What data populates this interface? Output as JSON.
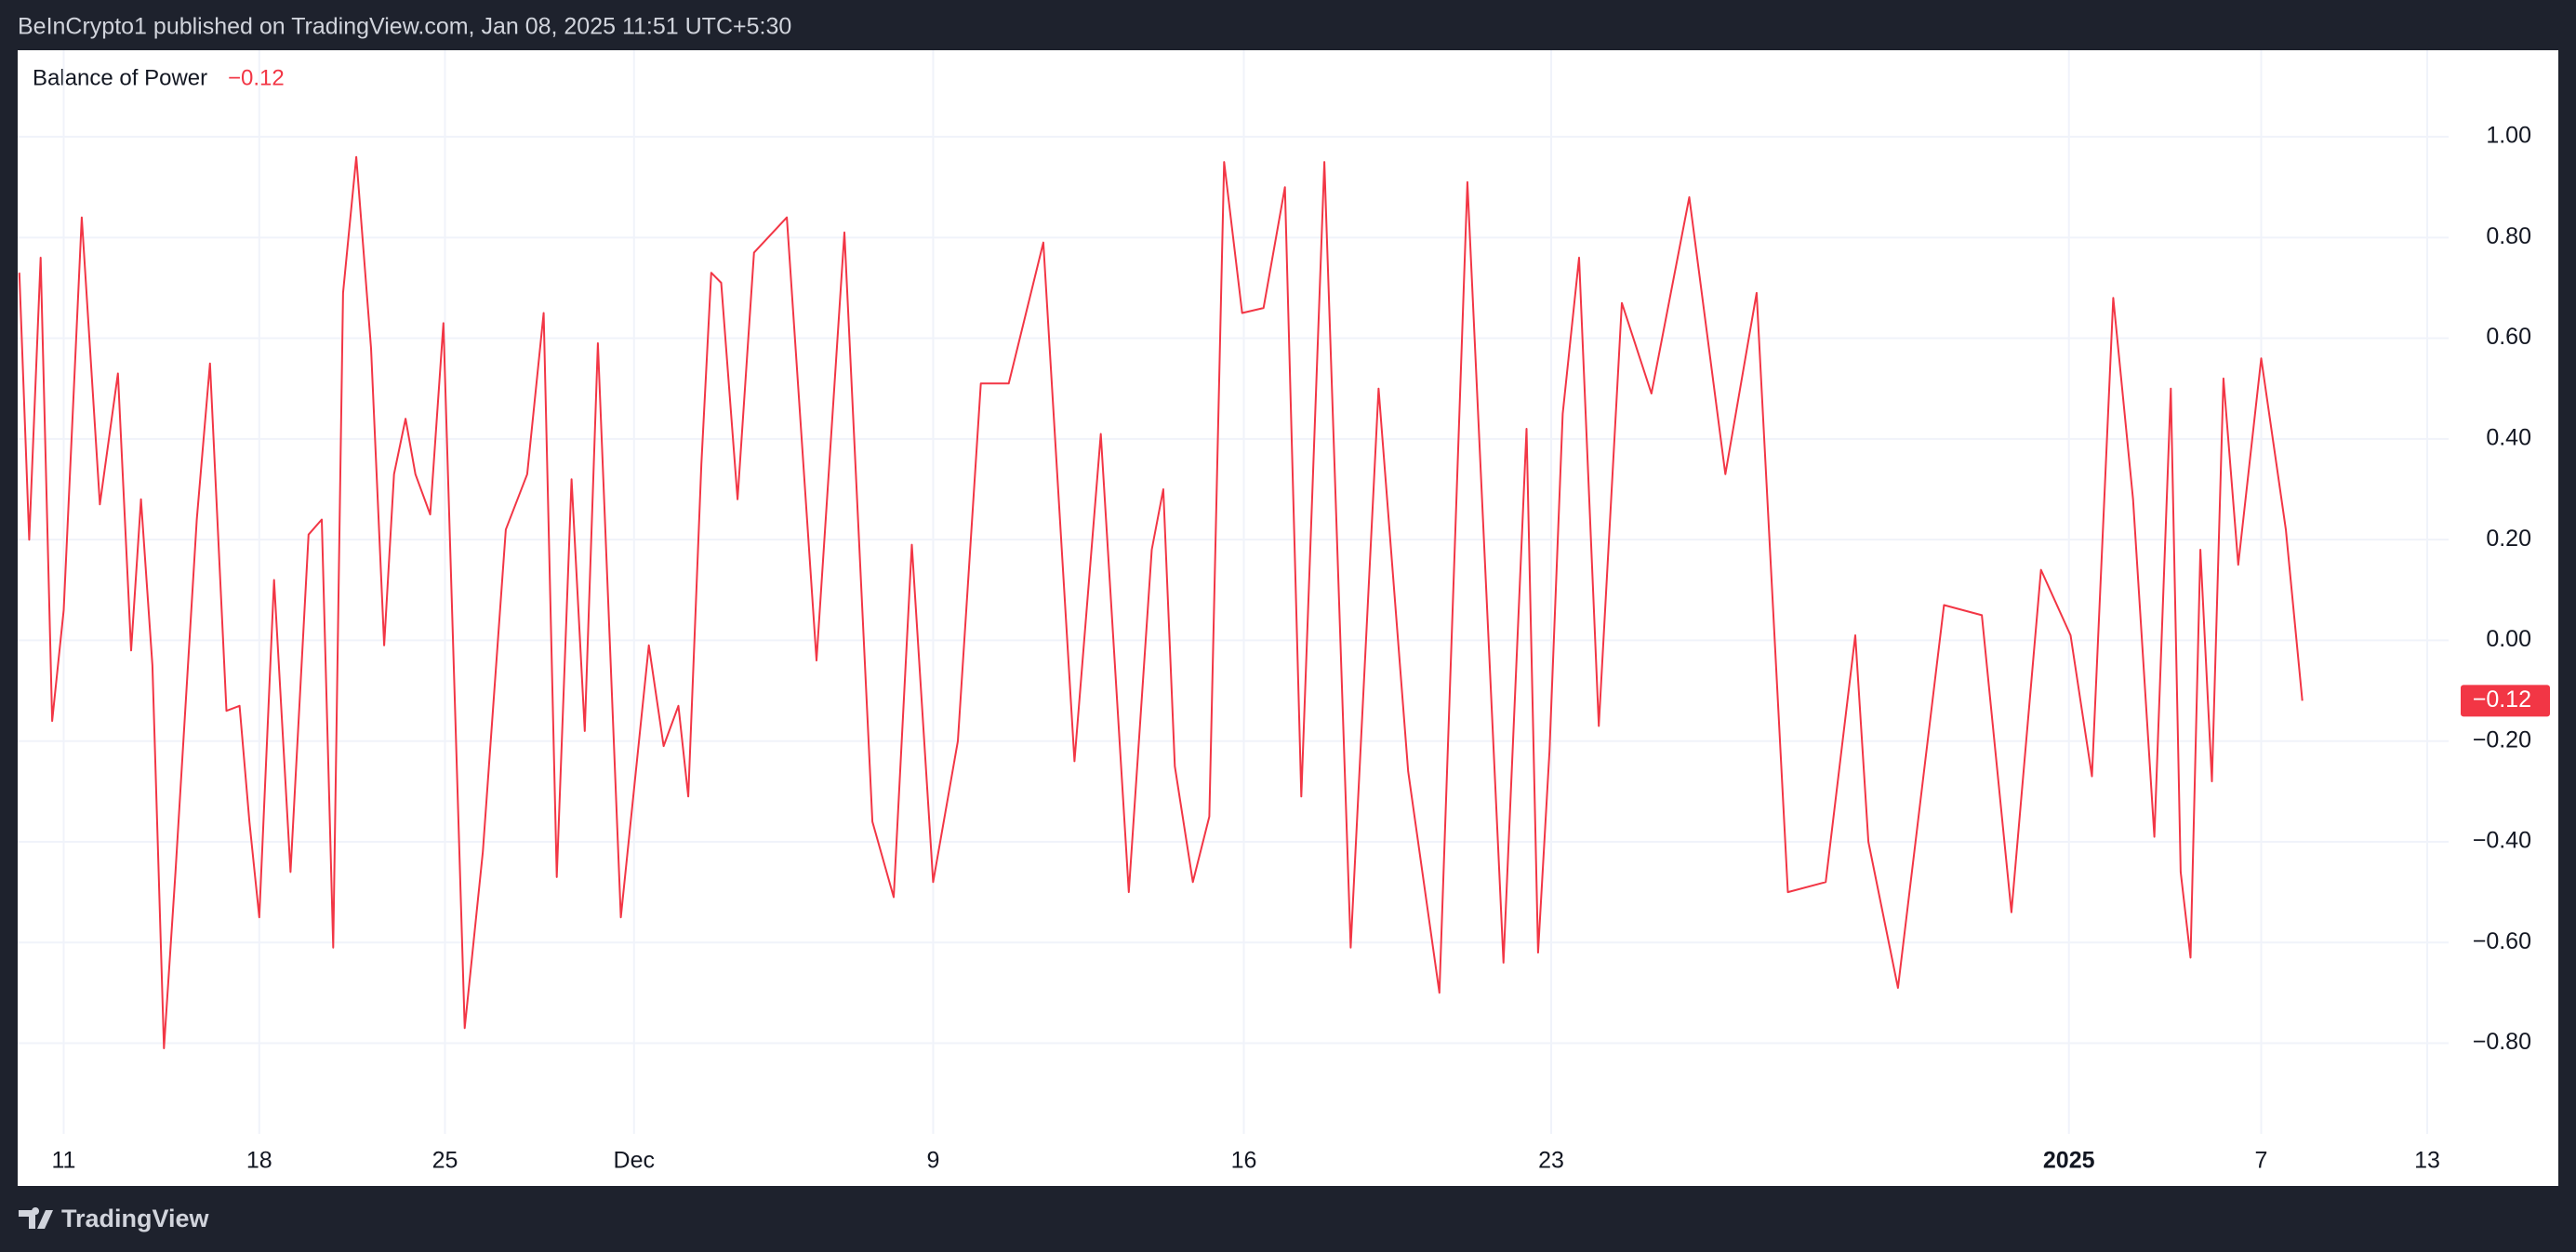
{
  "header": {
    "text": "BeInCrypto1 published on TradingView.com, Jan 08, 2025 11:51 UTC+5:30"
  },
  "footer": {
    "brand": "TradingView"
  },
  "chart_data": {
    "type": "line",
    "grid": true,
    "x": [
      1.2,
      1.8,
      2.5,
      3.2,
      3.9,
      5.0,
      6.1,
      7.2,
      8.0,
      8.6,
      9.3,
      10.0,
      10.7,
      12.0,
      12.8,
      13.8,
      14.6,
      15.2,
      15.8,
      16.7,
      17.7,
      18.8,
      19.6,
      20.3,
      20.9,
      21.7,
      22.6,
      23.4,
      24.0,
      24.7,
      25.3,
      26.2,
      27.0,
      28.3,
      29.4,
      30.8,
      32.1,
      33.1,
      33.9,
      34.8,
      35.6,
      36.4,
      37.8,
      39.5,
      40.4,
      41.3,
      41.9,
      42.7,
      43.3,
      43.9,
      44.9,
      45.9,
      47.9,
      49.7,
      51.4,
      53.1,
      54.4,
      55.5,
      56.8,
      58.3,
      59.7,
      61.4,
      63.5,
      65.4,
      67.0,
      68.7,
      70.1,
      70.8,
      71.5,
      72.6,
      73.6,
      74.5,
      75.6,
      76.9,
      78.2,
      79.2,
      80.6,
      82.2,
      83.9,
      85.7,
      87.6,
      89.3,
      91.5,
      92.9,
      93.6,
      94.3,
      95.1,
      96.1,
      97.3,
      98.7,
      100.5,
      102.8,
      105.0,
      106.9,
      108.8,
      111.1,
      112.9,
      113.7,
      115.5,
      118.3,
      120.6,
      122.4,
      124.2,
      126.0,
      127.3,
      128.6,
      129.8,
      131.1,
      132.1,
      132.7,
      133.3,
      133.9,
      134.6,
      135.3,
      136.2,
      137.6,
      139.1,
      140.1
    ],
    "series": [
      {
        "name": "Balance of Power",
        "color": "#f23645",
        "values": [
          0.73,
          0.2,
          0.76,
          -0.16,
          0.06,
          0.84,
          0.27,
          0.53,
          -0.02,
          0.28,
          -0.05,
          -0.81,
          -0.46,
          0.24,
          0.55,
          -0.14,
          -0.13,
          -0.36,
          -0.55,
          0.12,
          -0.46,
          0.21,
          0.24,
          -0.61,
          0.69,
          0.96,
          0.58,
          -0.01,
          0.33,
          0.44,
          0.33,
          0.25,
          0.63,
          -0.77,
          -0.42,
          0.22,
          0.33,
          0.65,
          -0.47,
          0.32,
          -0.18,
          0.59,
          -0.55,
          -0.01,
          -0.21,
          -0.13,
          -0.31,
          0.35,
          0.73,
          0.71,
          0.28,
          0.77,
          0.84,
          -0.04,
          0.81,
          -0.36,
          -0.51,
          0.19,
          -0.48,
          -0.2,
          0.51,
          0.51,
          0.79,
          -0.24,
          0.41,
          -0.5,
          0.18,
          0.3,
          -0.25,
          -0.48,
          -0.35,
          0.95,
          0.65,
          0.66,
          0.9,
          -0.31,
          0.95,
          -0.61,
          0.5,
          -0.26,
          -0.7,
          0.91,
          -0.64,
          0.42,
          -0.62,
          -0.22,
          0.45,
          0.76,
          -0.17,
          0.67,
          0.49,
          0.88,
          0.33,
          0.69,
          -0.5,
          -0.48,
          0.01,
          -0.4,
          -0.69,
          0.07,
          0.05,
          -0.54,
          0.14,
          0.01,
          -0.27,
          0.68,
          0.28,
          -0.39,
          0.5,
          -0.46,
          -0.63,
          0.18,
          -0.28,
          0.52,
          0.15,
          0.56,
          0.22,
          -0.12
        ]
      }
    ],
    "last_value": {
      "value": -0.12,
      "label": "−0.12"
    },
    "xlim": [
      1.1,
      149.0
    ],
    "xticks": [
      {
        "value": 3.9,
        "label": "11"
      },
      {
        "value": 15.8,
        "label": "18"
      },
      {
        "value": 27.1,
        "label": "25"
      },
      {
        "value": 38.6,
        "label": "Dec"
      },
      {
        "value": 56.8,
        "label": "9"
      },
      {
        "value": 75.7,
        "label": "16"
      },
      {
        "value": 94.4,
        "label": "23"
      },
      {
        "value": 125.9,
        "label": "2025"
      },
      {
        "value": 137.6,
        "label": "7"
      },
      {
        "value": 147.7,
        "label": "13"
      }
    ],
    "ylim": [
      -0.98,
      1.17
    ],
    "yticks": [
      {
        "value": 1,
        "label": "1.00"
      },
      {
        "value": 0.8,
        "label": "0.80"
      },
      {
        "value": 0.6,
        "label": "0.60"
      },
      {
        "value": 0.4,
        "label": "0.40"
      },
      {
        "value": 0.2,
        "label": "0.20"
      },
      {
        "value": 0,
        "label": "0.00"
      },
      {
        "value": -0.2,
        "label": "−0.20"
      },
      {
        "value": -0.4,
        "label": "−0.40"
      },
      {
        "value": -0.6,
        "label": "−0.60"
      },
      {
        "value": -0.8,
        "label": "−0.80"
      }
    ]
  }
}
